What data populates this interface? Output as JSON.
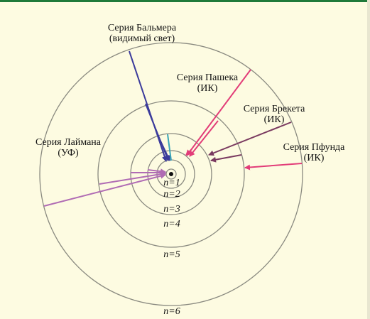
{
  "series": [
    {
      "name": "Серия Бальмера",
      "band": "(видимый свет)"
    },
    {
      "name": "Серия Пашека",
      "band": "(ИК)"
    },
    {
      "name": "Серия Брекета",
      "band": "(ИК)"
    },
    {
      "name": "Серия Пфунда",
      "band": "(ИК)"
    },
    {
      "name": "Серия Лаймана",
      "band": "(УФ)"
    }
  ],
  "levels": [
    "n=1",
    "n=2",
    "n=3",
    "n=4",
    "n=5",
    "n=6"
  ]
}
